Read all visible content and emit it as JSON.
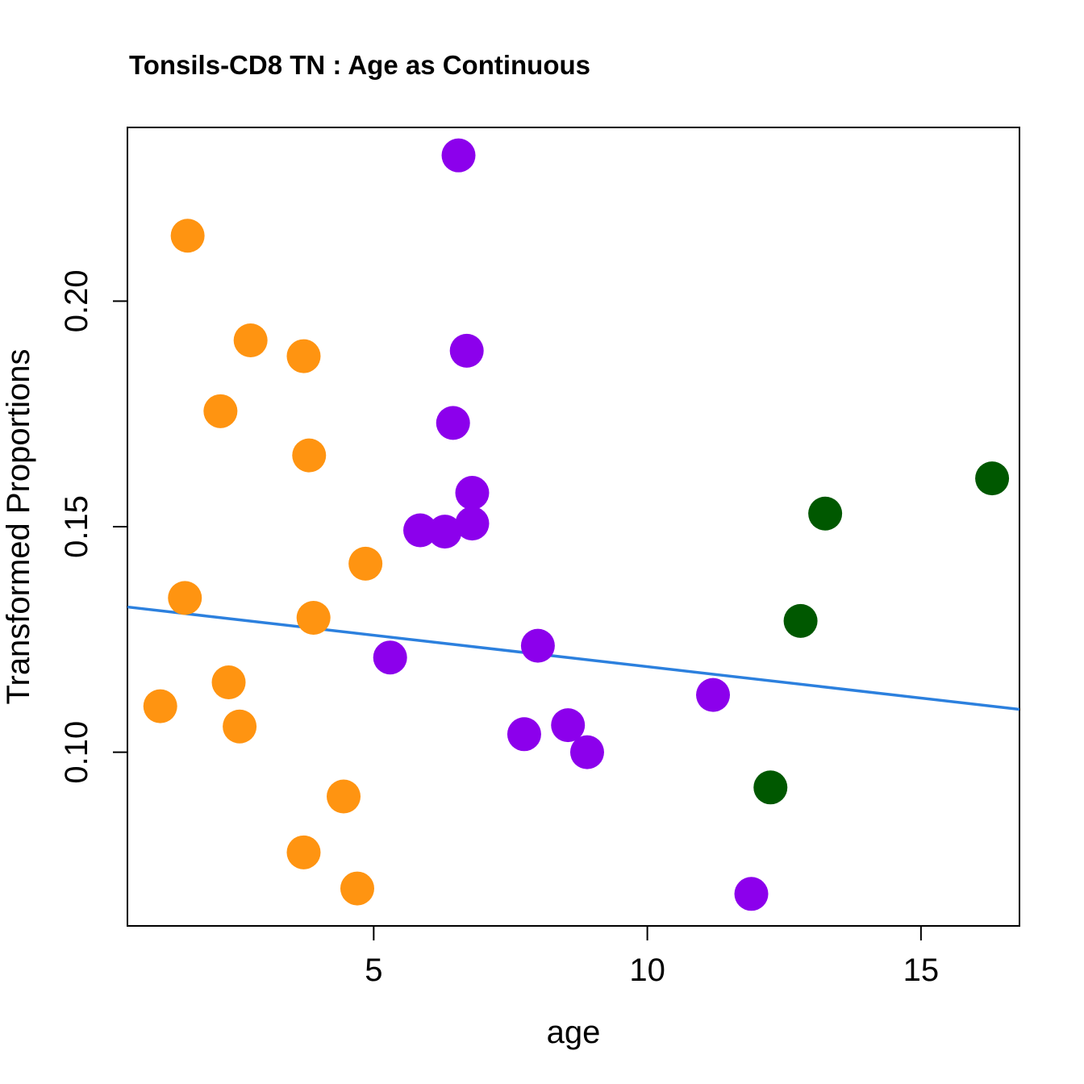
{
  "chart_data": {
    "type": "scatter",
    "title": "Tonsils-CD8 TN : Age as Continuous",
    "xlabel": "age",
    "ylabel": "Transformed Proportions",
    "xlim": [
      0.5,
      16.8
    ],
    "ylim": [
      0.0615,
      0.2385
    ],
    "xticks": [
      5,
      10,
      15
    ],
    "xtick_labels": [
      "5",
      "10",
      "15"
    ],
    "yticks": [
      0.1,
      0.15,
      0.2
    ],
    "ytick_labels": [
      "0.10",
      "0.15",
      "0.20"
    ],
    "grid": false,
    "colors": {
      "orange": "#FF9411",
      "purple": "#8C00EC",
      "green": "#005800",
      "line": "#2C80DE"
    },
    "series": [
      {
        "name": "orange",
        "color": "#FF9411",
        "points": [
          {
            "x": 1.6,
            "y": 0.2145
          },
          {
            "x": 1.1,
            "y": 0.1102
          },
          {
            "x": 1.55,
            "y": 0.1342
          },
          {
            "x": 2.2,
            "y": 0.1756
          },
          {
            "x": 2.75,
            "y": 0.1913
          },
          {
            "x": 2.35,
            "y": 0.1155
          },
          {
            "x": 2.55,
            "y": 0.1057
          },
          {
            "x": 3.72,
            "y": 0.1878
          },
          {
            "x": 3.82,
            "y": 0.1658
          },
          {
            "x": 3.9,
            "y": 0.1298
          },
          {
            "x": 4.85,
            "y": 0.1418
          },
          {
            "x": 4.45,
            "y": 0.0902
          },
          {
            "x": 3.72,
            "y": 0.0778
          },
          {
            "x": 4.7,
            "y": 0.0698
          }
        ]
      },
      {
        "name": "purple",
        "color": "#8C00EC",
        "points": [
          {
            "x": 6.55,
            "y": 0.2323
          },
          {
            "x": 6.7,
            "y": 0.189
          },
          {
            "x": 6.45,
            "y": 0.173
          },
          {
            "x": 6.8,
            "y": 0.1575
          },
          {
            "x": 6.8,
            "y": 0.1507
          },
          {
            "x": 5.85,
            "y": 0.1492
          },
          {
            "x": 6.3,
            "y": 0.1489
          },
          {
            "x": 5.3,
            "y": 0.121
          },
          {
            "x": 8.0,
            "y": 0.1236
          },
          {
            "x": 8.55,
            "y": 0.106
          },
          {
            "x": 7.75,
            "y": 0.104
          },
          {
            "x": 8.9,
            "y": 0.1
          },
          {
            "x": 11.2,
            "y": 0.1127
          },
          {
            "x": 11.9,
            "y": 0.0686
          }
        ]
      },
      {
        "name": "green",
        "color": "#005800",
        "points": [
          {
            "x": 16.3,
            "y": 0.1607
          },
          {
            "x": 13.25,
            "y": 0.1529
          },
          {
            "x": 12.8,
            "y": 0.1291
          },
          {
            "x": 12.25,
            "y": 0.0922
          }
        ]
      }
    ],
    "fit_line": {
      "color": "#2C80DE",
      "x": [
        0.5,
        16.8
      ],
      "y": [
        0.1322,
        0.1095
      ]
    }
  }
}
